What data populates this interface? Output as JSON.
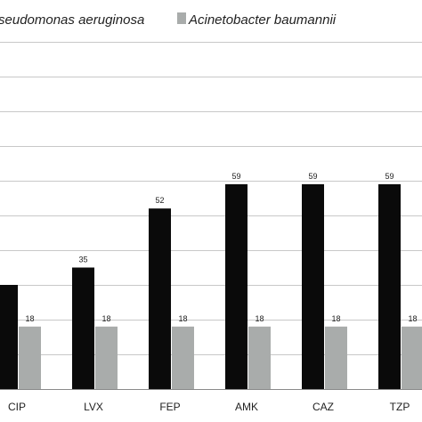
{
  "chart_data": {
    "type": "bar",
    "categories": [
      "CIP",
      "LVX",
      "FEP",
      "AMK",
      "CAZ",
      "TZP"
    ],
    "series": [
      {
        "name": "Pseudomonas aeruginosa",
        "color": "#0a0a0a",
        "values": [
          30,
          35,
          52,
          59,
          59,
          59
        ]
      },
      {
        "name": "Acinetobacter baumannii",
        "color": "#a9acab",
        "values": [
          18,
          18,
          18,
          18,
          18,
          18
        ]
      }
    ],
    "ylim": [
      0,
      100
    ],
    "grid": true,
    "legend_position": "top",
    "data_labels": [
      [
        "",
        "35",
        "52",
        "59",
        "59",
        "59"
      ],
      [
        "18",
        "18",
        "18",
        "18",
        "18",
        "18"
      ]
    ]
  }
}
